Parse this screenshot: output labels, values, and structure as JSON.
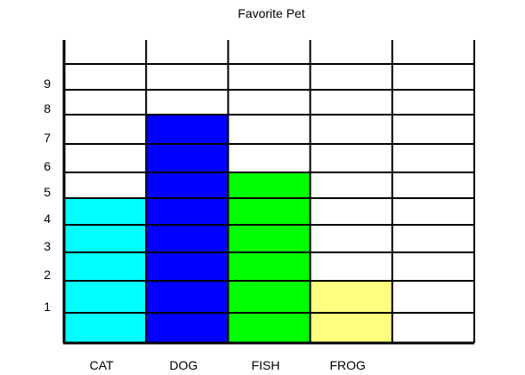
{
  "chart_data": {
    "type": "bar",
    "title": "Favorite Pet",
    "xlabel": "",
    "ylabel": "",
    "categories": [
      "CAT",
      "DOG",
      "FISH",
      "FROG"
    ],
    "values": [
      5,
      8,
      6,
      2
    ],
    "bar_colors": [
      "#00ffff",
      "#0000ff",
      "#00ff00",
      "#ffff80"
    ],
    "ylim": [
      0,
      10
    ],
    "yticks": [
      "1",
      "2",
      "3",
      "4",
      "5",
      "6",
      "7",
      "8",
      "9"
    ],
    "grid": true,
    "legend": "none"
  }
}
